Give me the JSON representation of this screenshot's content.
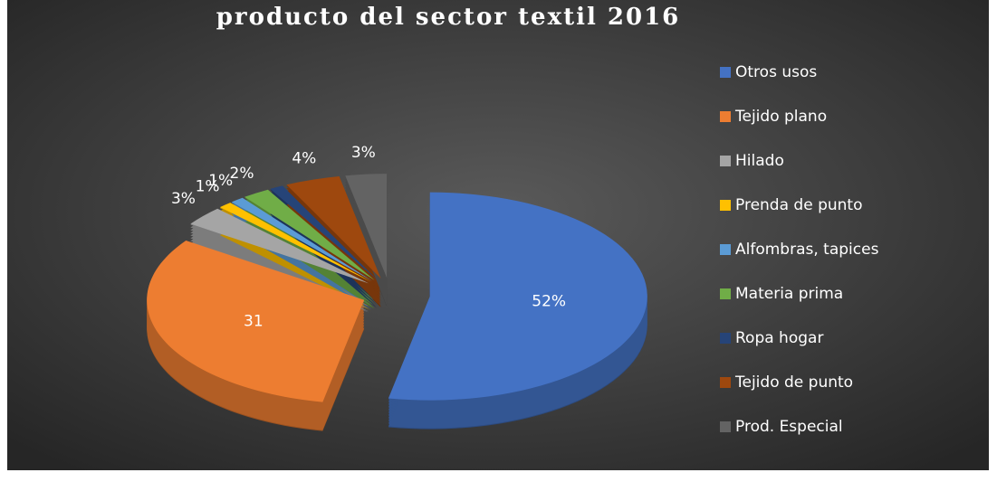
{
  "chart_data": {
    "type": "pie",
    "title": "producto del sector textil  2016",
    "categories": [
      "Otros usos",
      "Tejido plano",
      "Hilado",
      "Prenda de punto",
      "Alfombras, tapices",
      "Materia prima",
      "Ropa hogar",
      "Tejido de punto",
      "Prod. Especial"
    ],
    "values": [
      52,
      31,
      3,
      1,
      1,
      2,
      1,
      4,
      3
    ],
    "value_labels": [
      "52%",
      "31",
      "3%",
      "1%",
      "1%",
      "2%",
      null,
      "4%",
      "3%"
    ],
    "colors": [
      "#4472c4",
      "#ed7d31",
      "#a5a5a5",
      "#ffc000",
      "#5b9bd5",
      "#70ad47",
      "#264478",
      "#9e480e",
      "#636363"
    ],
    "legend": "right"
  }
}
